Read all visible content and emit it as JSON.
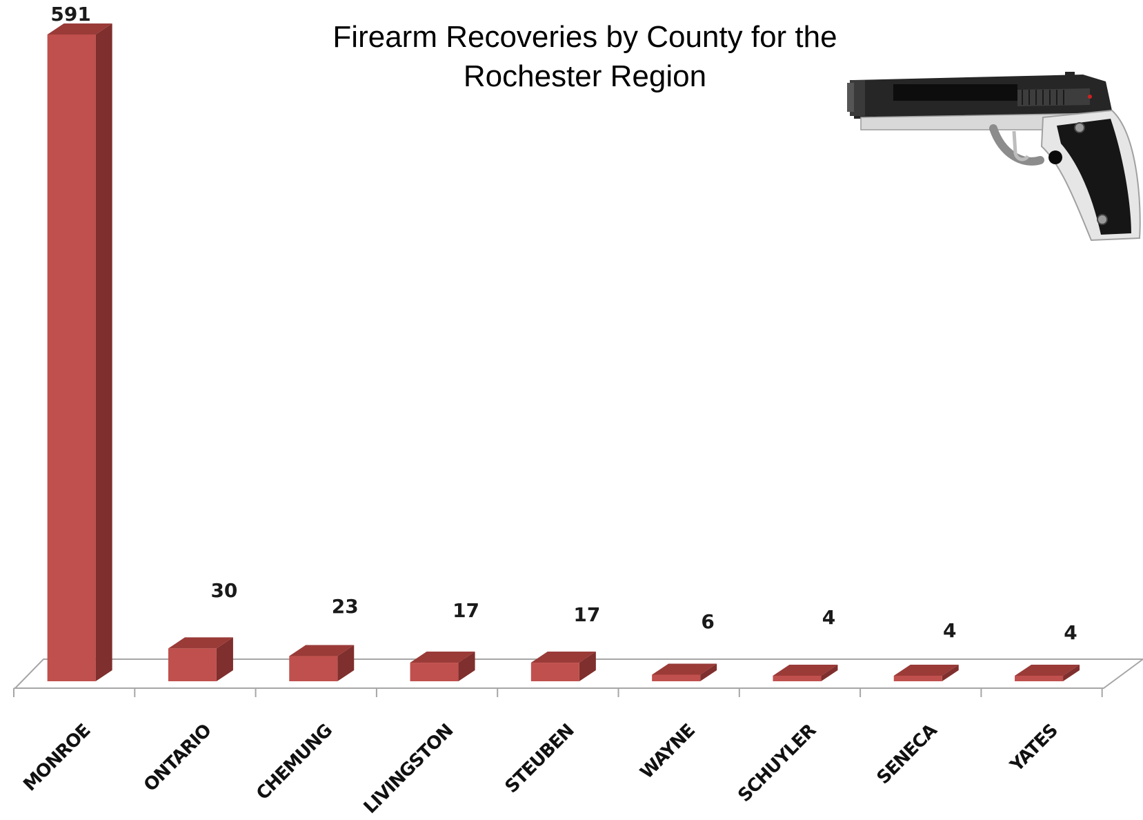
{
  "chart_data": {
    "type": "bar",
    "title": [
      "Firearm Recoveries by County for the",
      "Rochester Region"
    ],
    "categories": [
      "MONROE",
      "ONTARIO",
      "CHEMUNG",
      "LIVINGSTON",
      "STEUBEN",
      "WAYNE",
      "SCHUYLER",
      "SENECA",
      "YATES"
    ],
    "values": [
      591,
      30,
      23,
      17,
      17,
      6,
      4,
      4,
      4
    ],
    "data_labels": [
      "591",
      "30",
      "23",
      "17",
      "17",
      "6",
      "4",
      "4",
      "4"
    ],
    "ylim": [
      0,
      600
    ],
    "grid": false,
    "legend": "none",
    "colors": {
      "bar_front": "#c0504d",
      "bar_side": "#7f2f2d",
      "bar_top": "#9a3b38",
      "axis": "#a6a6a6"
    }
  },
  "decoration": {
    "icon": "pistol-icon"
  }
}
